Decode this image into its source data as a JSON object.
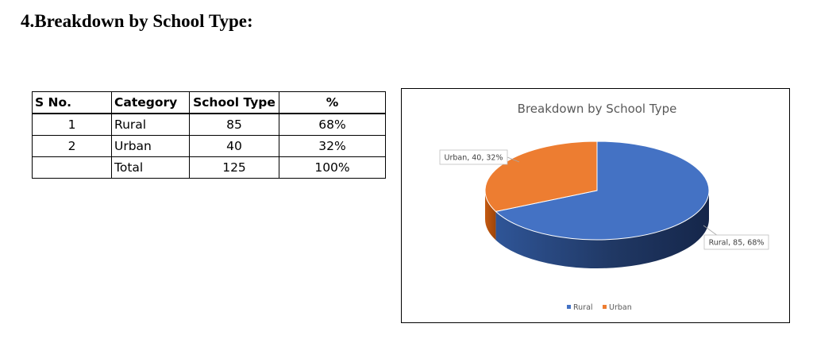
{
  "heading": "4.Breakdown by School Type:",
  "table": {
    "headers": [
      "S No.",
      "Category",
      "School Type",
      "%"
    ],
    "rows": [
      [
        "1",
        "Rural",
        "85",
        "68%"
      ],
      [
        "2",
        "Urban",
        "40",
        "32%"
      ],
      [
        "",
        "Total",
        "125",
        "100%"
      ]
    ]
  },
  "chart_data": {
    "type": "pie",
    "title": "Breakdown by School Type",
    "categories": [
      "Rural",
      "Urban"
    ],
    "values": [
      85,
      40
    ],
    "percents": [
      68,
      32
    ],
    "data_labels": [
      "Rural, 85, 68%",
      "Urban, 40, 32%"
    ],
    "colors": [
      "#4472C4",
      "#ED7D31"
    ],
    "legend": {
      "position": "bottom",
      "entries": [
        "Rural",
        "Urban"
      ]
    },
    "style": "3d"
  }
}
